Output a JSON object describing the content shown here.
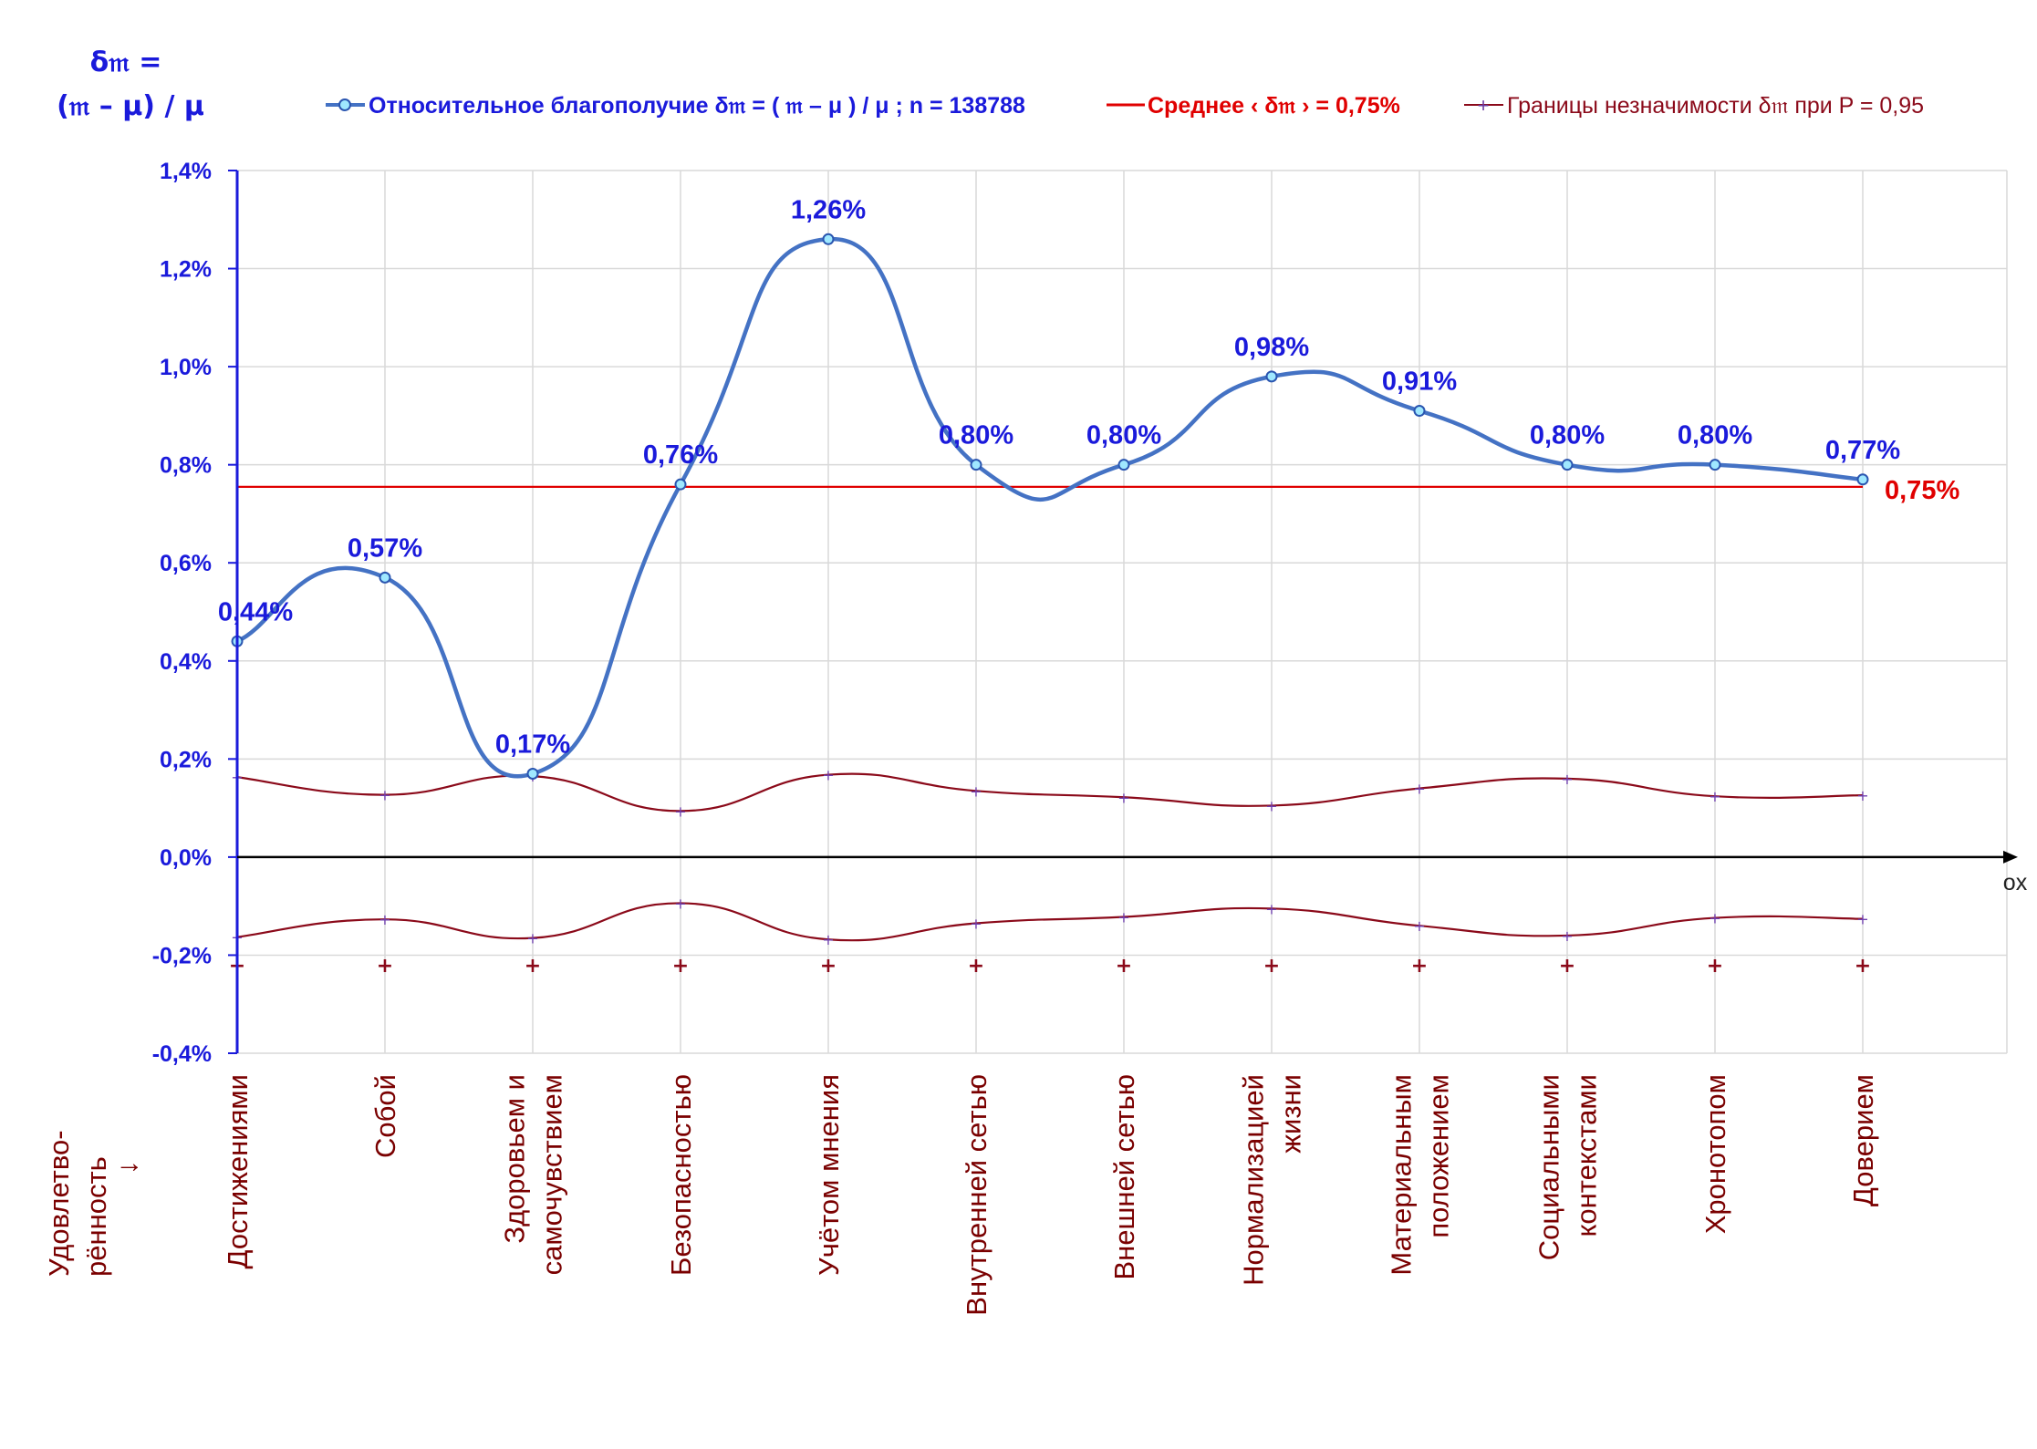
{
  "chart_data": {
    "type": "line",
    "corner_label": [
      "δ𝔪 =",
      "(𝔪 – μ) / μ"
    ],
    "categories": [
      "Достижениями",
      "Собой",
      "Здоровьем и\nсамочувствием",
      "Безопасностью",
      "Учётом мнения",
      "Внутренней сетью",
      "Внешней сетью",
      "Нормализацией\nжизни",
      "Материальным\nположением",
      "Социальными\nконтекстами",
      "Хронотопом",
      "Доверием"
    ],
    "category_axis_title": [
      "Удовлетво-",
      "рённость",
      "↓"
    ],
    "x_axis_label": "ox",
    "y_ticks": [
      "1,4%",
      "1,2%",
      "1,0%",
      "0,8%",
      "0,6%",
      "0,4%",
      "0,2%",
      "0,0%",
      "-0,2%",
      "-0,4%"
    ],
    "ylim": [
      -0.4,
      1.4
    ],
    "grid": true,
    "legend_position": "top",
    "series": [
      {
        "name": "Относительное благополучие δ𝔪 = ( 𝔪 – μ ) / μ ; n = 138788",
        "color": "#4472c4",
        "values": [
          0.44,
          0.57,
          0.17,
          0.76,
          1.26,
          0.8,
          0.8,
          0.98,
          0.91,
          0.8,
          0.8,
          0.77
        ],
        "labels": [
          "0,44%",
          "0,57%",
          "0,17%",
          "0,76%",
          "1,26%",
          "0,80%",
          "0,80%",
          "0,98%",
          "0,91%",
          "0,80%",
          "0,80%",
          "0,77%"
        ]
      },
      {
        "name": "Среднее ‹ δ𝔪 › = 0,75%",
        "color": "#e00000",
        "value": 0.755,
        "label": "0,75%"
      },
      {
        "name": "Границы незначимости δ𝔪 при P = 0,95",
        "color": "#8b0a1a",
        "upper": [
          0.163,
          0.127,
          0.165,
          0.094,
          0.168,
          0.135,
          0.122,
          0.105,
          0.14,
          0.16,
          0.124,
          0.126
        ],
        "lower": [
          -0.163,
          -0.127,
          -0.165,
          -0.094,
          -0.168,
          -0.135,
          -0.122,
          -0.105,
          -0.14,
          -0.16,
          -0.124,
          -0.126
        ],
        "floor_markers": -0.22
      }
    ]
  }
}
